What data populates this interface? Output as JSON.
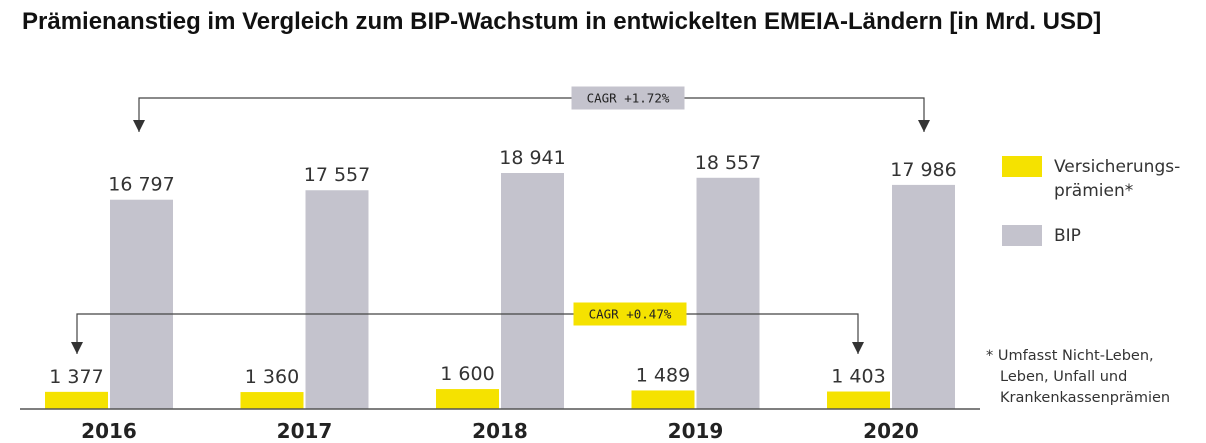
{
  "chart_data": {
    "type": "bar",
    "title": "Prämienanstieg im Vergleich zum BIP-Wachstum in entwickelten EMEIA-Ländern [in Mrd. USD]",
    "categories": [
      "2016",
      "2017",
      "2018",
      "2019",
      "2020"
    ],
    "series": [
      {
        "name": "Versicherungs-prämien*",
        "legend_lines": [
          "Versicherungs-",
          "prämien*"
        ],
        "color": "#f5e200",
        "values": [
          1377,
          1360,
          1600,
          1489,
          1403
        ],
        "labels": [
          "1 377",
          "1 360",
          "1 600",
          "1 489",
          "1 403"
        ]
      },
      {
        "name": "BIP",
        "legend_lines": [
          "BIP"
        ],
        "color": "#c4c3cd",
        "values": [
          16797,
          17557,
          18941,
          18557,
          17986
        ],
        "labels": [
          "16 797",
          "17 557",
          "18 941",
          "18 557",
          "17 986"
        ]
      }
    ],
    "annotations": [
      {
        "text": "CAGR +1.72%",
        "series": "BIP",
        "from": "2016",
        "to": "2020",
        "color": "#c4c3cd"
      },
      {
        "text": "CAGR +0.47%",
        "series": "Versicherungs-prämien*",
        "from": "2016",
        "to": "2020",
        "color": "#f5e200"
      }
    ],
    "footnote": [
      "* Umfasst Nicht-Leben,",
      "Leben, Unfall und",
      "Krankenkassenprämien"
    ],
    "xlabel": "",
    "ylabel": "",
    "grid": false,
    "legend_position": "right"
  }
}
